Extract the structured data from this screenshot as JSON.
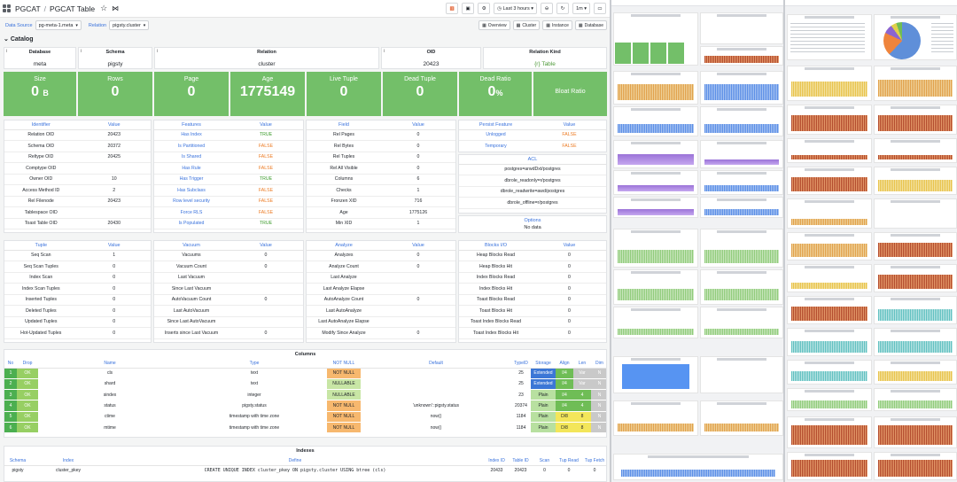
{
  "topbar": {
    "crumb_root": "PGCAT",
    "crumb_sep": "/",
    "crumb_page": "PGCAT Table",
    "time_range": "Last 3 hours",
    "refresh": "1m"
  },
  "variables": {
    "datasource_label": "Data Source",
    "datasource_value": "pg-meta-1.meta",
    "relation_label": "Relation",
    "relation_value": "pigsty.cluster"
  },
  "links": [
    "Overview",
    "Cluster",
    "Instance",
    "Database"
  ],
  "row_catalog": "Catalog",
  "info": {
    "database_title": "Database",
    "database_value": "meta",
    "schema_title": "Schema",
    "schema_value": "pigsty",
    "relation_title": "Relation",
    "relation_value": "cluster",
    "oid_title": "OID",
    "oid_value": "20423",
    "kind_title": "Relation Kind",
    "kind_value": "{r} Table"
  },
  "stats": {
    "size_title": "Size",
    "size_value": "0",
    "size_unit": "B",
    "rows_title": "Rows",
    "rows_value": "0",
    "page_title": "Page",
    "page_value": "0",
    "age_title": "Age",
    "age_value": "1775149",
    "live_title": "Live Tuple",
    "live_value": "0",
    "dead_title": "Dead Tuple",
    "dead_value": "0",
    "ratio_title": "Dead Ratio",
    "ratio_value": "0",
    "ratio_unit": "%",
    "bloat_title": "Bloat Ratio"
  },
  "identifier": {
    "headers": [
      "Identifier",
      "Value"
    ],
    "rows": [
      [
        "Relation OID",
        "20423"
      ],
      [
        "Schema OID",
        "20372"
      ],
      [
        "Reltype OID",
        "20425"
      ],
      [
        "Comptype OID",
        ""
      ],
      [
        "Owner OID",
        "10"
      ],
      [
        "Access Method ID",
        "2"
      ],
      [
        "Rel Filenode",
        "20423"
      ],
      [
        "Tablespace OID",
        ""
      ],
      [
        "Toast Table OID",
        "20430"
      ]
    ]
  },
  "features": {
    "headers": [
      "Features",
      "Value"
    ],
    "rows": [
      [
        "Has Index",
        "TRUE"
      ],
      [
        "Is Partitioned",
        "FALSE"
      ],
      [
        "Is Shared",
        "FALSE"
      ],
      [
        "Has Rule",
        "FALSE"
      ],
      [
        "Has Trigger",
        "TRUE"
      ],
      [
        "Has Subclass",
        "FALSE"
      ],
      [
        "Row level security",
        "FALSE"
      ],
      [
        "Force RLS",
        "FALSE"
      ],
      [
        "Is Populated",
        "TRUE"
      ]
    ]
  },
  "field": {
    "headers": [
      "Field",
      "Value"
    ],
    "rows": [
      [
        "Rel Pages",
        "0"
      ],
      [
        "Rel Bytes",
        "0"
      ],
      [
        "Rel Tuples",
        "0"
      ],
      [
        "Rel All Visible",
        "0"
      ],
      [
        "Columns",
        "6"
      ],
      [
        "Checks",
        "1"
      ],
      [
        "Fronzen XID",
        "716"
      ],
      [
        "Age",
        "1775126"
      ],
      [
        "Min XID",
        "1"
      ]
    ]
  },
  "persist": {
    "headers": [
      "Persist Feature",
      "Value"
    ],
    "rows": [
      [
        "Unlogged",
        "FALSE"
      ],
      [
        "Temporary",
        "FALSE"
      ]
    ]
  },
  "acl": {
    "title": "ACL",
    "rows": [
      "postgres=arwdDxt/postgres",
      "dbrole_readonly=r/postgres",
      "dbrole_readwrite=awd/postgres",
      "dbrole_offline=r/postgres"
    ]
  },
  "options": {
    "title": "Options",
    "value": "No data"
  },
  "tuple": {
    "headers": [
      "Tuple",
      "Value"
    ],
    "rows": [
      [
        "Seq Scan",
        "1"
      ],
      [
        "Seq Scan Tuples",
        "0"
      ],
      [
        "Index Scan",
        "0"
      ],
      [
        "Index Scan Tuples",
        "0"
      ],
      [
        "Inserted Tuples",
        "0"
      ],
      [
        "Deleted Tuples",
        "0"
      ],
      [
        "Updated Tuples",
        "0"
      ],
      [
        "Hot-Updated Tuples",
        "0"
      ]
    ]
  },
  "vacuum": {
    "headers": [
      "Vacuum",
      "Value"
    ],
    "rows": [
      [
        "Vacuums",
        "0"
      ],
      [
        "Vacuum Count",
        "0"
      ],
      [
        "Last Vacuum",
        ""
      ],
      [
        "Since Last Vacuum",
        ""
      ],
      [
        "AutoVacuum Count",
        "0"
      ],
      [
        "Last AutoVacuum",
        ""
      ],
      [
        "Since Last AutoVacuum",
        ""
      ],
      [
        "Inserts since Last Vacuum",
        "0"
      ]
    ]
  },
  "analyze": {
    "headers": [
      "Analyze",
      "Value"
    ],
    "rows": [
      [
        "Analyzes",
        "0"
      ],
      [
        "Analyze Count",
        "0"
      ],
      [
        "Last Analyze",
        ""
      ],
      [
        "Last Analyze Elapse",
        ""
      ],
      [
        "AutoAnalyze Count",
        "0"
      ],
      [
        "Last AutoAnalyze",
        ""
      ],
      [
        "Last AutoAnalyze Elapse",
        ""
      ],
      [
        "Modify Since Analyze",
        "0"
      ]
    ]
  },
  "blocks": {
    "headers": [
      "Blocks I/O",
      "Value"
    ],
    "rows": [
      [
        "Heap Blocks Read",
        "0"
      ],
      [
        "Heap Blocks Hit",
        "0"
      ],
      [
        "Index Blocks Read",
        "0"
      ],
      [
        "Index Blocks Hit",
        "0"
      ],
      [
        "Toast Blocks Read",
        "0"
      ],
      [
        "Toast Blocks Hit",
        "0"
      ],
      [
        "Toast Index Blocks Read",
        "0"
      ],
      [
        "Toast Index Blocks Hit",
        "0"
      ]
    ]
  },
  "columns": {
    "title": "Columns",
    "headers": [
      "No",
      "Drop",
      "Name",
      "Type",
      "NOT NULL",
      "Default",
      "TypeID",
      "Storage",
      "Align",
      "Len",
      "Dim"
    ],
    "rows": [
      [
        "1",
        "OK",
        "cls",
        "text",
        "NOT NULL",
        "",
        "25",
        "Extended",
        "I/4",
        "Var",
        "N"
      ],
      [
        "2",
        "OK",
        "shard",
        "text",
        "NULLABLE",
        "",
        "25",
        "Extended",
        "I/4",
        "Var",
        "N"
      ],
      [
        "3",
        "OK",
        "sindex",
        "integer",
        "NULLABLE",
        "",
        "23",
        "Plain",
        "I/4",
        "4",
        "N"
      ],
      [
        "4",
        "OK",
        "status",
        "pigsty.status",
        "NOT NULL",
        "'unknown'::pigsty.status",
        "20374",
        "Plain",
        "I/4",
        "4",
        "N"
      ],
      [
        "5",
        "OK",
        "ctime",
        "timestamp with time zone",
        "NOT NULL",
        "now()",
        "1184",
        "Plain",
        "D/8",
        "8",
        "N"
      ],
      [
        "6",
        "OK",
        "mtime",
        "timestamp with time zone",
        "NOT NULL",
        "now()",
        "1184",
        "Plain",
        "D/8",
        "8",
        "N"
      ]
    ]
  },
  "indexes": {
    "title": "Indexes",
    "headers": [
      "Schema",
      "Index",
      "Define",
      "Index ID",
      "Table ID",
      "Scan",
      "Tup Read",
      "Tup Fetch"
    ],
    "rows": [
      [
        "pigsty",
        "cluster_pkey",
        "CREATE UNIQUE INDEX cluster_pkey ON pigsty.cluster USING btree (cls)",
        "20433",
        "20423",
        "0",
        "0",
        "0"
      ]
    ]
  },
  "colors": {
    "stat_green": "#73bf69",
    "link_blue": "#3871dc",
    "true_green": "#3a9a2a",
    "false_orange": "#ec7b24"
  }
}
